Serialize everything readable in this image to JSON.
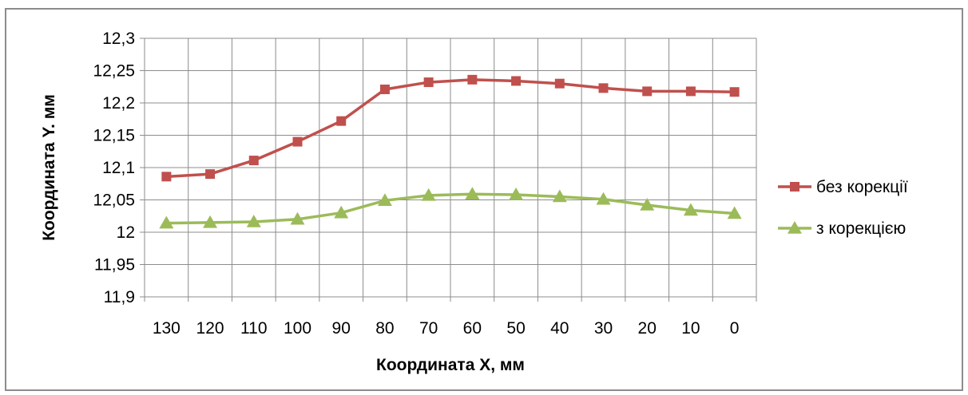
{
  "chart_data": {
    "type": "line",
    "title": "",
    "xlabel": "Координата Х, мм",
    "ylabel": "Координата Y. мм",
    "categories": [
      "130",
      "120",
      "110",
      "100",
      "90",
      "80",
      "70",
      "60",
      "50",
      "40",
      "30",
      "20",
      "10",
      "0"
    ],
    "y_ticks": [
      "11,9",
      "11,95",
      "12",
      "12,05",
      "12,1",
      "12,15",
      "12,2",
      "12,25",
      "12,3"
    ],
    "ylim": [
      11.9,
      12.3
    ],
    "grid": true,
    "legend_position": "right",
    "series": [
      {
        "name": "без корекції",
        "color": "#c0504d",
        "marker": "square",
        "values": [
          12.086,
          12.09,
          12.111,
          12.14,
          12.172,
          12.221,
          12.232,
          12.236,
          12.234,
          12.23,
          12.223,
          12.218,
          12.218,
          12.217
        ]
      },
      {
        "name": "з корекцією",
        "color": "#9bbb59",
        "marker": "triangle",
        "values": [
          12.014,
          12.015,
          12.016,
          12.02,
          12.03,
          12.049,
          12.057,
          12.059,
          12.058,
          12.055,
          12.051,
          12.042,
          12.034,
          12.029
        ]
      }
    ]
  }
}
